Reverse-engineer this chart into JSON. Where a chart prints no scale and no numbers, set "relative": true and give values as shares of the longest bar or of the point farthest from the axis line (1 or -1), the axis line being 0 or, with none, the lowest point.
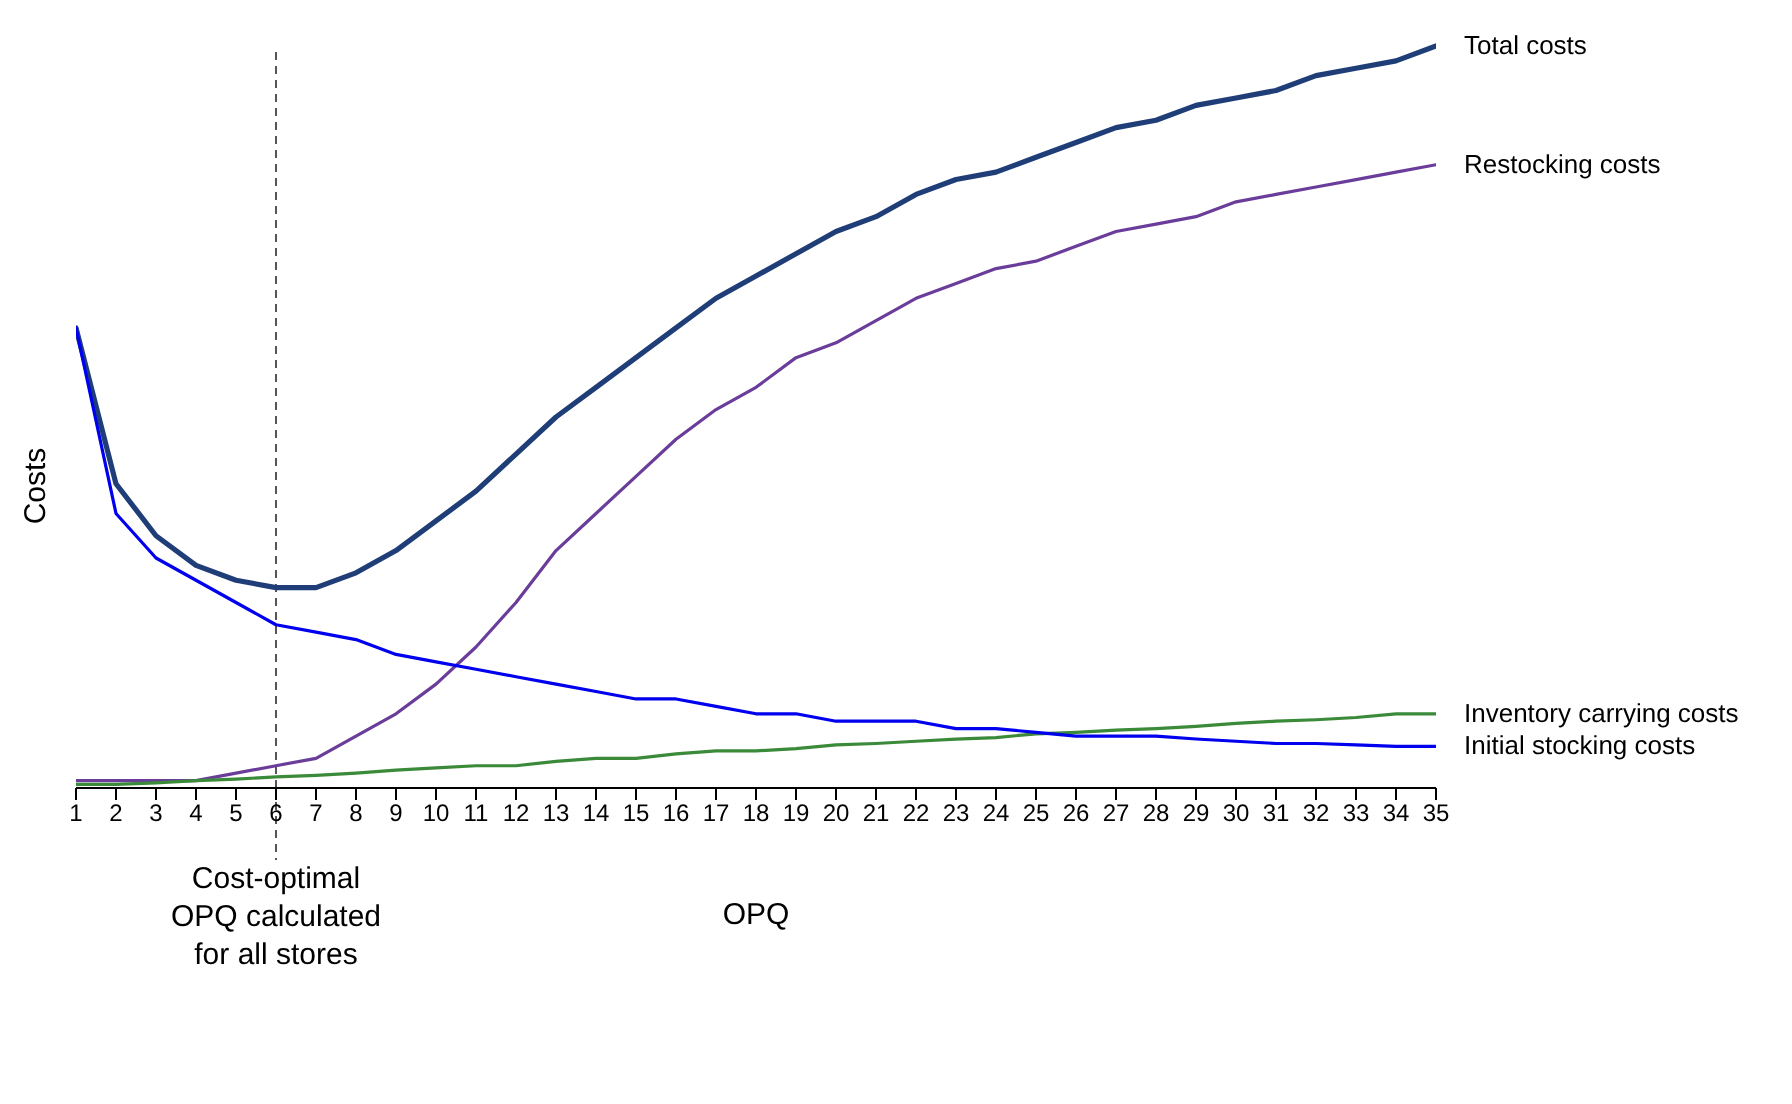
{
  "chart_data": {
    "type": "line",
    "relative": true,
    "xlabel": "OPQ",
    "ylabel": "Costs",
    "x": [
      1,
      2,
      3,
      4,
      5,
      6,
      7,
      8,
      9,
      10,
      11,
      12,
      13,
      14,
      15,
      16,
      17,
      18,
      19,
      20,
      21,
      22,
      23,
      24,
      25,
      26,
      27,
      28,
      29,
      30,
      31,
      32,
      33,
      34,
      35
    ],
    "xlim": [
      1,
      35
    ],
    "xticks": [
      1,
      2,
      3,
      4,
      5,
      6,
      7,
      8,
      9,
      10,
      11,
      12,
      13,
      14,
      15,
      16,
      17,
      18,
      19,
      20,
      21,
      22,
      23,
      24,
      25,
      26,
      27,
      28,
      29,
      30,
      31,
      32,
      33,
      34,
      35
    ],
    "series": [
      {
        "name": "Total costs",
        "color": "#1f3e78",
        "values": [
          0.62,
          0.41,
          0.34,
          0.3,
          0.28,
          0.27,
          0.27,
          0.29,
          0.32,
          0.36,
          0.4,
          0.45,
          0.5,
          0.54,
          0.58,
          0.62,
          0.66,
          0.69,
          0.72,
          0.75,
          0.77,
          0.8,
          0.82,
          0.83,
          0.85,
          0.87,
          0.89,
          0.9,
          0.92,
          0.93,
          0.94,
          0.96,
          0.97,
          0.98,
          1
        ]
      },
      {
        "name": "Restocking costs",
        "color": "#6a3d9a",
        "values": [
          0.01,
          0.01,
          0.01,
          0.01,
          0.02,
          0.03,
          0.04,
          0.07,
          0.1,
          0.14,
          0.19,
          0.25,
          0.32,
          0.37,
          0.42,
          0.47,
          0.51,
          0.54,
          0.58,
          0.6,
          0.63,
          0.66,
          0.68,
          0.7,
          0.71,
          0.73,
          0.75,
          0.76,
          0.77,
          0.79,
          0.8,
          0.81,
          0.82,
          0.83,
          0.84
        ]
      },
      {
        "name": "Inventory carrying costs",
        "color": "#3a8a3a",
        "values": [
          0.005,
          0.005,
          0.007,
          0.01,
          0.012,
          0.015,
          0.017,
          0.02,
          0.024,
          0.027,
          0.03,
          0.03,
          0.036,
          0.04,
          0.04,
          0.046,
          0.05,
          0.05,
          0.053,
          0.058,
          0.06,
          0.063,
          0.066,
          0.068,
          0.073,
          0.075,
          0.078,
          0.08,
          0.083,
          0.087,
          0.09,
          0.092,
          0.095,
          0.1,
          0.1
        ]
      },
      {
        "name": "Initial stocking costs",
        "color": "#0000ee",
        "values": [
          0.62,
          0.37,
          0.31,
          0.28,
          0.25,
          0.22,
          0.21,
          0.2,
          0.18,
          0.17,
          0.16,
          0.15,
          0.14,
          0.13,
          0.12,
          0.12,
          0.11,
          0.1,
          0.1,
          0.09,
          0.09,
          0.09,
          0.08,
          0.08,
          0.075,
          0.07,
          0.07,
          0.07,
          0.066,
          0.063,
          0.06,
          0.06,
          0.058,
          0.056,
          0.056
        ]
      }
    ],
    "ref_lines": [
      {
        "axis": "x",
        "value": 6,
        "label": "Cost-optimal OPQ calculated for all stores",
        "color": "#555555",
        "line_style": "dashed"
      }
    ],
    "grid": false,
    "marker": "none",
    "line_style": "solid"
  }
}
